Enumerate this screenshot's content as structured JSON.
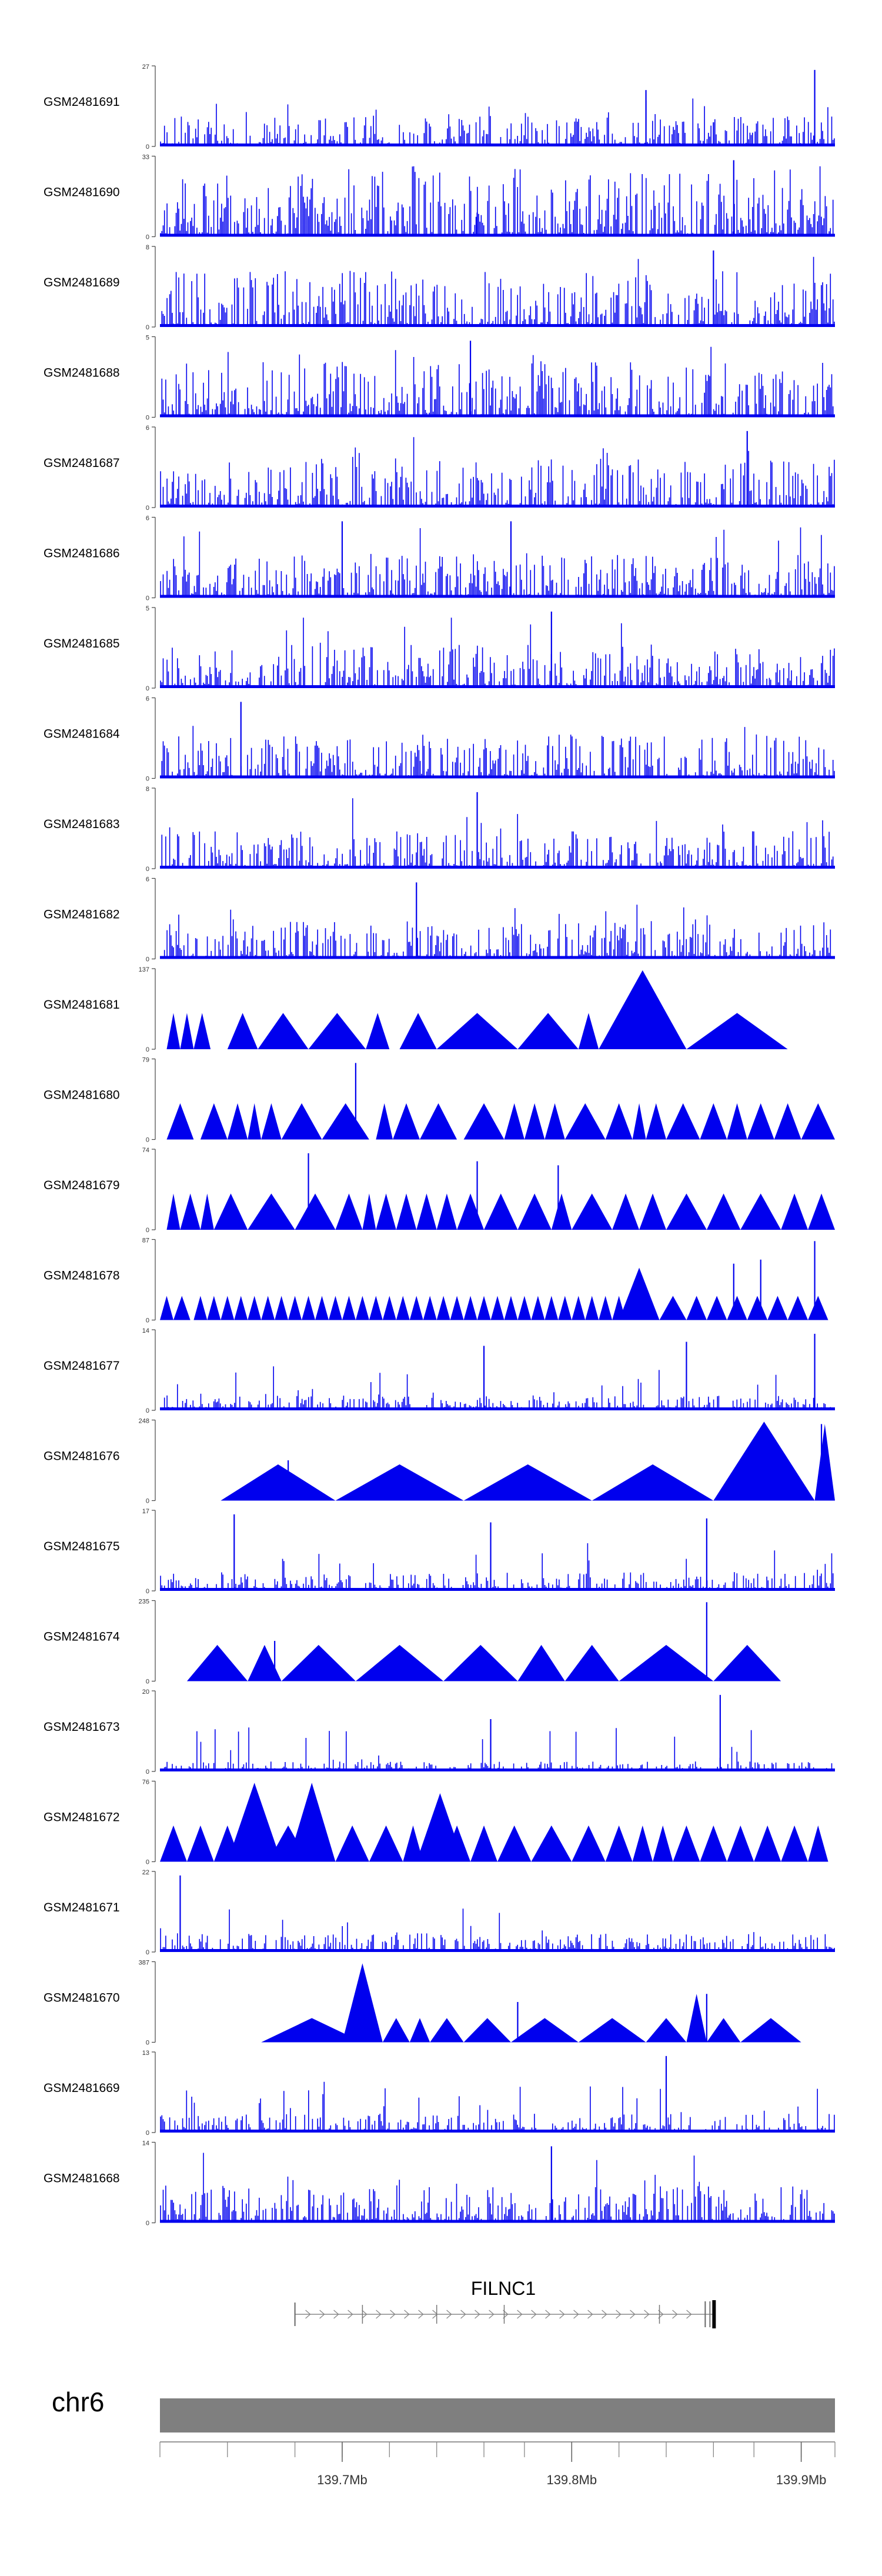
{
  "tracks": [
    {
      "label": "GSM2481691",
      "ymax": "27",
      "ymin": "0",
      "style": "noise",
      "density": 0.25,
      "spikes": [
        [
          0.72,
          0.7
        ],
        [
          0.82,
          0.3
        ],
        [
          0.97,
          0.95
        ]
      ]
    },
    {
      "label": "GSM2481690",
      "ymax": "33",
      "ymin": "0",
      "style": "noise",
      "density": 0.55,
      "spikes": [
        [
          0.85,
          0.95
        ],
        [
          0.47,
          0.3
        ]
      ]
    },
    {
      "label": "GSM2481689",
      "ymax": "8",
      "ymin": "0",
      "style": "noise",
      "density": 0.45,
      "spikes": [
        [
          0.82,
          0.95
        ]
      ]
    },
    {
      "label": "GSM2481688",
      "ymax": "5",
      "ymin": "0",
      "style": "noise",
      "density": 0.45,
      "spikes": [
        [
          0.46,
          0.95
        ]
      ]
    },
    {
      "label": "GSM2481687",
      "ymax": "6",
      "ymin": "0",
      "style": "noise",
      "density": 0.4,
      "spikes": [
        [
          0.87,
          0.95
        ]
      ]
    },
    {
      "label": "GSM2481686",
      "ymax": "6",
      "ymin": "0",
      "style": "noise",
      "density": 0.35,
      "spikes": [
        [
          0.27,
          0.95
        ],
        [
          0.52,
          0.95
        ]
      ]
    },
    {
      "label": "GSM2481685",
      "ymax": "5",
      "ymin": "0",
      "style": "noise",
      "density": 0.35,
      "spikes": [
        [
          0.58,
          0.95
        ]
      ]
    },
    {
      "label": "GSM2481684",
      "ymax": "6",
      "ymin": "0",
      "style": "noise",
      "density": 0.35,
      "spikes": [
        [
          0.12,
          0.95
        ]
      ]
    },
    {
      "label": "GSM2481683",
      "ymax": "8",
      "ymin": "0",
      "style": "noise",
      "density": 0.3,
      "spikes": [
        [
          0.47,
          0.95
        ]
      ]
    },
    {
      "label": "GSM2481682",
      "ymax": "6",
      "ymin": "0",
      "style": "noise",
      "density": 0.3,
      "spikes": [
        [
          0.38,
          0.95
        ]
      ]
    },
    {
      "label": "GSM2481681",
      "ymax": "137",
      "ymin": "0",
      "style": "tri",
      "tris": [
        [
          0.01,
          0.03,
          0.45
        ],
        [
          0.03,
          0.05,
          0.45
        ],
        [
          0.05,
          0.075,
          0.45
        ],
        [
          0.1,
          0.145,
          0.45
        ],
        [
          0.145,
          0.22,
          0.45
        ],
        [
          0.22,
          0.305,
          0.45
        ],
        [
          0.305,
          0.34,
          0.45
        ],
        [
          0.355,
          0.41,
          0.45
        ],
        [
          0.41,
          0.53,
          0.45
        ],
        [
          0.53,
          0.62,
          0.45
        ],
        [
          0.62,
          0.65,
          0.45
        ],
        [
          0.65,
          0.78,
          0.98
        ],
        [
          0.78,
          0.93,
          0.45
        ]
      ]
    },
    {
      "label": "GSM2481680",
      "ymax": "79",
      "ymin": "0",
      "style": "tri",
      "tris": [
        [
          0.01,
          0.05,
          0.45
        ],
        [
          0.06,
          0.1,
          0.45
        ],
        [
          0.1,
          0.13,
          0.45
        ],
        [
          0.13,
          0.15,
          0.45
        ],
        [
          0.15,
          0.18,
          0.45
        ],
        [
          0.18,
          0.24,
          0.45
        ],
        [
          0.24,
          0.31,
          0.45
        ],
        [
          0.32,
          0.345,
          0.45
        ],
        [
          0.345,
          0.385,
          0.45
        ],
        [
          0.385,
          0.44,
          0.45
        ],
        [
          0.45,
          0.51,
          0.45
        ],
        [
          0.51,
          0.54,
          0.45
        ],
        [
          0.54,
          0.57,
          0.45
        ],
        [
          0.57,
          0.6,
          0.45
        ],
        [
          0.6,
          0.66,
          0.45
        ],
        [
          0.66,
          0.7,
          0.45
        ],
        [
          0.7,
          0.72,
          0.45
        ],
        [
          0.72,
          0.75,
          0.45
        ],
        [
          0.75,
          0.8,
          0.45
        ],
        [
          0.8,
          0.84,
          0.45
        ],
        [
          0.84,
          0.87,
          0.45
        ],
        [
          0.87,
          0.91,
          0.45
        ],
        [
          0.91,
          0.95,
          0.45
        ],
        [
          0.95,
          1.0,
          0.45
        ]
      ],
      "spikes": [
        [
          0.29,
          0.95
        ]
      ]
    },
    {
      "label": "GSM2481679",
      "ymax": "74",
      "ymin": "0",
      "style": "tri",
      "tris": [
        [
          0.01,
          0.03,
          0.45
        ],
        [
          0.03,
          0.06,
          0.45
        ],
        [
          0.06,
          0.08,
          0.45
        ],
        [
          0.08,
          0.13,
          0.45
        ],
        [
          0.13,
          0.2,
          0.45
        ],
        [
          0.2,
          0.26,
          0.45
        ],
        [
          0.26,
          0.3,
          0.45
        ],
        [
          0.3,
          0.32,
          0.45
        ],
        [
          0.32,
          0.35,
          0.45
        ],
        [
          0.35,
          0.38,
          0.45
        ],
        [
          0.38,
          0.41,
          0.45
        ],
        [
          0.41,
          0.44,
          0.45
        ],
        [
          0.44,
          0.48,
          0.45
        ],
        [
          0.48,
          0.53,
          0.45
        ],
        [
          0.53,
          0.58,
          0.45
        ],
        [
          0.58,
          0.61,
          0.45
        ],
        [
          0.61,
          0.67,
          0.45
        ],
        [
          0.67,
          0.71,
          0.45
        ],
        [
          0.71,
          0.75,
          0.45
        ],
        [
          0.75,
          0.81,
          0.45
        ],
        [
          0.81,
          0.86,
          0.45
        ],
        [
          0.86,
          0.92,
          0.45
        ],
        [
          0.92,
          0.96,
          0.45
        ],
        [
          0.96,
          1.0,
          0.45
        ]
      ],
      "spikes": [
        [
          0.22,
          0.95
        ],
        [
          0.47,
          0.85
        ],
        [
          0.59,
          0.8
        ]
      ]
    },
    {
      "label": "GSM2481678",
      "ymax": "87",
      "ymin": "0",
      "style": "tri",
      "tris": [
        [
          0.0,
          0.02,
          0.3
        ],
        [
          0.02,
          0.045,
          0.3
        ],
        [
          0.05,
          0.07,
          0.3
        ],
        [
          0.07,
          0.09,
          0.3
        ],
        [
          0.09,
          0.11,
          0.3
        ],
        [
          0.11,
          0.13,
          0.3
        ],
        [
          0.13,
          0.15,
          0.3
        ],
        [
          0.15,
          0.17,
          0.3
        ],
        [
          0.17,
          0.19,
          0.3
        ],
        [
          0.19,
          0.21,
          0.3
        ],
        [
          0.21,
          0.23,
          0.3
        ],
        [
          0.23,
          0.25,
          0.3
        ],
        [
          0.25,
          0.27,
          0.3
        ],
        [
          0.27,
          0.29,
          0.3
        ],
        [
          0.29,
          0.31,
          0.3
        ],
        [
          0.31,
          0.33,
          0.3
        ],
        [
          0.33,
          0.35,
          0.3
        ],
        [
          0.35,
          0.37,
          0.3
        ],
        [
          0.37,
          0.39,
          0.3
        ],
        [
          0.39,
          0.41,
          0.3
        ],
        [
          0.41,
          0.43,
          0.3
        ],
        [
          0.43,
          0.45,
          0.3
        ],
        [
          0.45,
          0.47,
          0.3
        ],
        [
          0.47,
          0.49,
          0.3
        ],
        [
          0.49,
          0.51,
          0.3
        ],
        [
          0.51,
          0.53,
          0.3
        ],
        [
          0.53,
          0.55,
          0.3
        ],
        [
          0.55,
          0.57,
          0.3
        ],
        [
          0.57,
          0.59,
          0.3
        ],
        [
          0.59,
          0.61,
          0.3
        ],
        [
          0.61,
          0.63,
          0.3
        ],
        [
          0.63,
          0.65,
          0.3
        ],
        [
          0.65,
          0.67,
          0.3
        ],
        [
          0.67,
          0.69,
          0.3
        ],
        [
          0.69,
          0.72,
          0.3
        ],
        [
          0.68,
          0.74,
          0.65
        ],
        [
          0.74,
          0.78,
          0.3
        ],
        [
          0.78,
          0.81,
          0.3
        ],
        [
          0.81,
          0.84,
          0.3
        ],
        [
          0.84,
          0.87,
          0.3
        ],
        [
          0.87,
          0.9,
          0.3
        ],
        [
          0.9,
          0.93,
          0.3
        ],
        [
          0.93,
          0.96,
          0.3
        ],
        [
          0.96,
          0.99,
          0.3
        ]
      ],
      "spikes": [
        [
          0.85,
          0.7
        ],
        [
          0.89,
          0.75
        ],
        [
          0.97,
          0.98
        ]
      ]
    },
    {
      "label": "GSM2481677",
      "ymax": "14",
      "ymin": "0",
      "style": "noise",
      "density": 0.12,
      "spikes": [
        [
          0.48,
          0.8
        ],
        [
          0.78,
          0.85
        ],
        [
          0.97,
          0.95
        ]
      ]
    },
    {
      "label": "GSM2481676",
      "ymax": "248",
      "ymin": "0",
      "style": "tri",
      "tris": [
        [
          0.09,
          0.26,
          0.45
        ],
        [
          0.26,
          0.45,
          0.45
        ],
        [
          0.45,
          0.64,
          0.45
        ],
        [
          0.64,
          0.82,
          0.45
        ],
        [
          0.82,
          0.97,
          0.98
        ],
        [
          0.97,
          1.0,
          0.95
        ]
      ],
      "spikes": [
        [
          0.19,
          0.5
        ],
        [
          0.98,
          0.95
        ]
      ]
    },
    {
      "label": "GSM2481675",
      "ymax": "17",
      "ymin": "0",
      "style": "noise",
      "density": 0.15,
      "spikes": [
        [
          0.11,
          0.95
        ],
        [
          0.49,
          0.85
        ],
        [
          0.81,
          0.9
        ]
      ]
    },
    {
      "label": "GSM2481674",
      "ymax": "235",
      "ymin": "0",
      "style": "tri",
      "tris": [
        [
          0.04,
          0.13,
          0.45
        ],
        [
          0.13,
          0.18,
          0.45
        ],
        [
          0.18,
          0.29,
          0.45
        ],
        [
          0.29,
          0.42,
          0.45
        ],
        [
          0.42,
          0.53,
          0.45
        ],
        [
          0.53,
          0.6,
          0.45
        ],
        [
          0.6,
          0.68,
          0.45
        ],
        [
          0.68,
          0.82,
          0.45
        ],
        [
          0.82,
          0.92,
          0.45
        ]
      ],
      "spikes": [
        [
          0.81,
          0.98
        ],
        [
          0.17,
          0.5
        ]
      ]
    },
    {
      "label": "GSM2481673",
      "ymax": "20",
      "ymin": "0",
      "style": "noise",
      "density": 0.08,
      "spikes": [
        [
          0.49,
          0.65
        ],
        [
          0.83,
          0.95
        ]
      ]
    },
    {
      "label": "GSM2481672",
      "ymax": "76",
      "ymin": "0",
      "style": "tri",
      "tris": [
        [
          0.0,
          0.04,
          0.45
        ],
        [
          0.04,
          0.08,
          0.45
        ],
        [
          0.08,
          0.12,
          0.45
        ],
        [
          0.1,
          0.18,
          0.98
        ],
        [
          0.16,
          0.22,
          0.45
        ],
        [
          0.19,
          0.26,
          0.98
        ],
        [
          0.26,
          0.31,
          0.45
        ],
        [
          0.31,
          0.36,
          0.45
        ],
        [
          0.36,
          0.39,
          0.45
        ],
        [
          0.39,
          0.42,
          0.45
        ],
        [
          0.38,
          0.45,
          0.85
        ],
        [
          0.42,
          0.46,
          0.45
        ],
        [
          0.46,
          0.5,
          0.45
        ],
        [
          0.5,
          0.55,
          0.45
        ],
        [
          0.55,
          0.61,
          0.45
        ],
        [
          0.61,
          0.66,
          0.45
        ],
        [
          0.66,
          0.7,
          0.45
        ],
        [
          0.7,
          0.73,
          0.45
        ],
        [
          0.73,
          0.76,
          0.45
        ],
        [
          0.76,
          0.8,
          0.45
        ],
        [
          0.8,
          0.84,
          0.45
        ],
        [
          0.84,
          0.88,
          0.45
        ],
        [
          0.88,
          0.92,
          0.45
        ],
        [
          0.92,
          0.96,
          0.45
        ],
        [
          0.96,
          0.99,
          0.45
        ]
      ]
    },
    {
      "label": "GSM2481671",
      "ymax": "22",
      "ymin": "0",
      "style": "noise",
      "density": 0.15,
      "spikes": [
        [
          0.03,
          0.95
        ]
      ]
    },
    {
      "label": "GSM2481670",
      "ymax": "387",
      "ymin": "0",
      "style": "tri",
      "tris": [
        [
          0.15,
          0.3,
          0.3
        ],
        [
          0.27,
          0.33,
          0.98
        ],
        [
          0.33,
          0.37,
          0.3
        ],
        [
          0.37,
          0.4,
          0.3
        ],
        [
          0.4,
          0.45,
          0.3
        ],
        [
          0.45,
          0.52,
          0.3
        ],
        [
          0.52,
          0.62,
          0.3
        ],
        [
          0.62,
          0.72,
          0.3
        ],
        [
          0.72,
          0.78,
          0.3
        ],
        [
          0.78,
          0.81,
          0.6
        ],
        [
          0.81,
          0.86,
          0.3
        ],
        [
          0.86,
          0.95,
          0.3
        ]
      ],
      "spikes": [
        [
          0.53,
          0.5
        ],
        [
          0.81,
          0.6
        ]
      ]
    },
    {
      "label": "GSM2481669",
      "ymax": "13",
      "ymin": "0",
      "style": "noise",
      "density": 0.15,
      "spikes": [
        [
          0.75,
          0.95
        ]
      ]
    },
    {
      "label": "GSM2481668",
      "ymax": "14",
      "ymin": "0",
      "style": "noise",
      "density": 0.3,
      "spikes": [
        [
          0.58,
          0.95
        ]
      ]
    }
  ],
  "gene": {
    "name": "FILNC1",
    "start": 0.2,
    "end": 0.82,
    "exons": [
      0.3,
      0.41,
      0.51,
      0.74
    ]
  },
  "chromosome": {
    "label": "chr6",
    "ticks": [
      {
        "pos": 0.27,
        "label": "139.7Mb"
      },
      {
        "pos": 0.61,
        "label": "139.8Mb"
      },
      {
        "pos": 0.95,
        "label": "139.9Mb"
      }
    ],
    "minor_ticks": [
      0.0,
      0.1,
      0.2,
      0.27,
      0.34,
      0.41,
      0.48,
      0.54,
      0.61,
      0.68,
      0.75,
      0.82,
      0.88,
      0.95,
      1.0
    ]
  },
  "colors": {
    "signal": "#0000ee",
    "axis": "#444444",
    "ideogram": "#7f7f7f",
    "gene": "#888888"
  }
}
